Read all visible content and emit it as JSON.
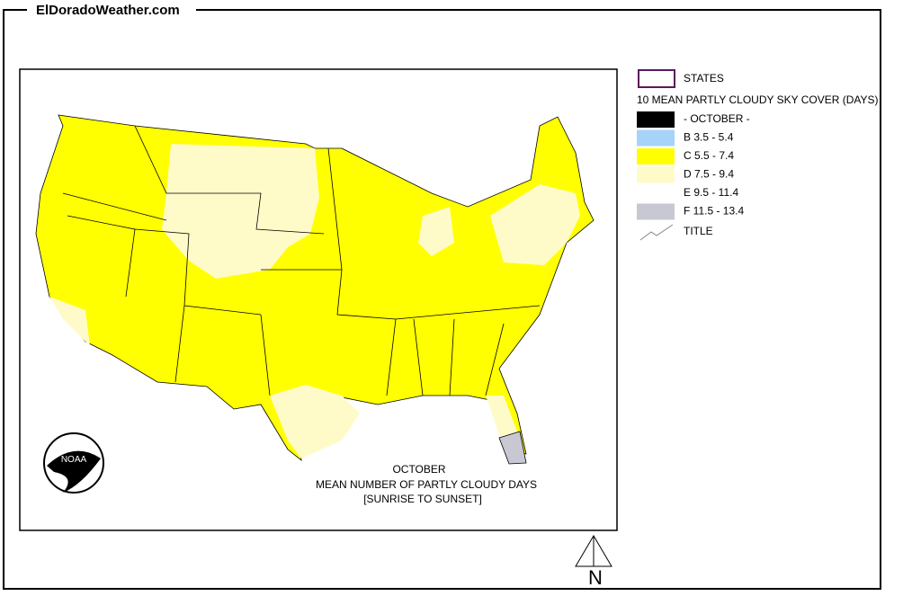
{
  "header": {
    "site": "ElDoradoWeather.com"
  },
  "legend": {
    "states": "STATES",
    "heading": "10 MEAN PARTLY CLOUDY SKY COVER (DAYS)",
    "items": [
      {
        "label": "- OCTOBER -",
        "color": "#000000"
      },
      {
        "label": "B 3.5 - 5.4",
        "color": "#a6d3fa"
      },
      {
        "label": "C 5.5 - 7.4",
        "color": "#ffff00"
      },
      {
        "label": "D 7.5 - 9.4",
        "color": "#fffbc8"
      },
      {
        "label": "E 9.5 - 11.4",
        "color": "#ffffff"
      },
      {
        "label": "F 11.5 - 13.4",
        "color": "#c8c8d2"
      }
    ],
    "title_entry": "TITLE"
  },
  "caption": {
    "line1": "OCTOBER",
    "line2": "MEAN NUMBER OF PARTLY CLOUDY DAYS",
    "line3": "[SUNRISE TO SUNSET]"
  },
  "logo": "NOAA",
  "compass": "N"
}
